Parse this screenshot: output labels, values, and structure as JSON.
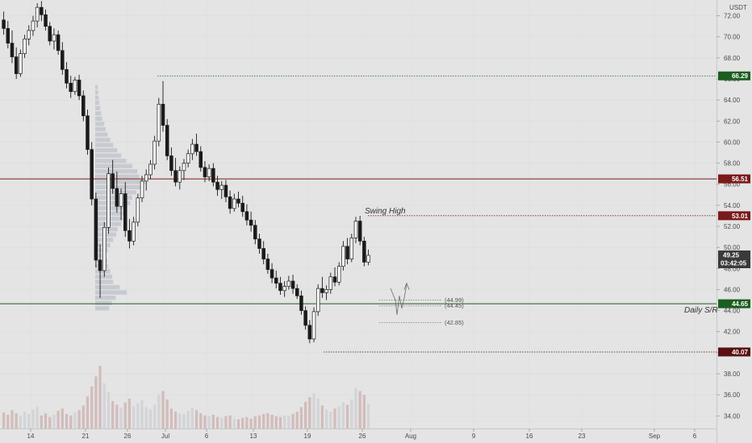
{
  "chart_data": {
    "type": "candlestick",
    "y_unit_label": "USDT",
    "ylim": [
      32.8,
      73.5
    ],
    "y_ticks": [
      "72.00",
      "70.00",
      "68.00",
      "66.00",
      "64.00",
      "62.00",
      "60.00",
      "58.00",
      "56.00",
      "54.00",
      "52.00",
      "50.00",
      "48.00",
      "46.00",
      "44.00",
      "42.00",
      "40.00",
      "38.00",
      "36.00",
      "34.00"
    ],
    "x_ticks": [
      "14",
      "21",
      "26",
      "Jul",
      "6",
      "13",
      "19",
      "26",
      "Aug",
      "9",
      "16",
      "23",
      "Sep",
      "6"
    ],
    "price_levels": [
      {
        "id": "level-66",
        "value": 66.29,
        "label": "66.29",
        "color": "#1b5e20",
        "style": "dotted"
      },
      {
        "id": "level-56",
        "value": 56.51,
        "label": "56.51",
        "color": "#7a1a1a",
        "style": "solid"
      },
      {
        "id": "level-53",
        "value": 53.01,
        "label": "53.01",
        "color": "#7a1a1a",
        "style": "dotted"
      },
      {
        "id": "level-44",
        "value": 44.65,
        "label": "44.65",
        "color": "#1b5e20",
        "style": "solid"
      },
      {
        "id": "level-40",
        "value": 40.07,
        "label": "40.07",
        "color": "#5a1010",
        "style": "dotted"
      }
    ],
    "current_price": {
      "value": 49.25,
      "label": "49.25",
      "countdown": "03:42:05",
      "color": "#3a3a3a"
    },
    "annotations": [
      {
        "id": "swing-high",
        "text": "Swing High"
      },
      {
        "id": "daily-sr",
        "text": "Daily S/R"
      }
    ],
    "projections": [
      {
        "id": "proj-1",
        "value": 44.99,
        "label": "(44.99)"
      },
      {
        "id": "proj-2",
        "value": 44.45,
        "label": "(44.45)"
      },
      {
        "id": "proj-3",
        "value": 42.85,
        "label": "(42.85)"
      }
    ],
    "candles": [
      [
        71.6,
        72.4,
        70.2,
        70.8
      ],
      [
        70.8,
        71.5,
        68.9,
        69.4
      ],
      [
        69.4,
        70.6,
        67.5,
        68.1
      ],
      [
        68.1,
        69.0,
        66.0,
        66.5
      ],
      [
        66.5,
        68.8,
        66.2,
        68.4
      ],
      [
        68.4,
        70.2,
        68.0,
        69.8
      ],
      [
        69.8,
        71.1,
        69.2,
        70.6
      ],
      [
        70.6,
        72.0,
        70.1,
        71.5
      ],
      [
        71.5,
        73.2,
        70.9,
        72.8
      ],
      [
        72.8,
        73.4,
        71.5,
        72.1
      ],
      [
        72.1,
        72.6,
        70.6,
        71.0
      ],
      [
        71.0,
        71.4,
        69.2,
        69.6
      ],
      [
        69.6,
        70.8,
        68.8,
        70.2
      ],
      [
        70.2,
        70.6,
        68.3,
        68.7
      ],
      [
        68.7,
        69.5,
        66.4,
        66.9
      ],
      [
        66.9,
        67.6,
        65.1,
        65.6
      ],
      [
        65.6,
        66.3,
        64.2,
        64.8
      ],
      [
        64.8,
        66.2,
        64.5,
        65.9
      ],
      [
        65.9,
        66.4,
        64.0,
        64.4
      ],
      [
        64.4,
        64.9,
        62.0,
        62.5
      ],
      [
        62.5,
        63.1,
        58.8,
        59.3
      ],
      [
        59.3,
        60.0,
        54.0,
        54.6
      ],
      [
        54.6,
        55.2,
        48.1,
        48.8
      ],
      [
        48.8,
        50.3,
        45.2,
        47.8
      ],
      [
        47.8,
        52.4,
        47.2,
        51.9
      ],
      [
        51.9,
        57.6,
        51.3,
        57.0
      ],
      [
        57.0,
        58.3,
        55.1,
        55.6
      ],
      [
        55.6,
        57.2,
        53.3,
        53.9
      ],
      [
        53.9,
        55.6,
        52.6,
        55.1
      ],
      [
        55.1,
        56.2,
        51.0,
        51.6
      ],
      [
        51.6,
        52.7,
        49.9,
        50.6
      ],
      [
        50.6,
        52.9,
        50.2,
        52.4
      ],
      [
        52.4,
        55.1,
        52.0,
        54.7
      ],
      [
        54.7,
        56.8,
        54.3,
        56.3
      ],
      [
        56.3,
        57.4,
        55.4,
        56.9
      ],
      [
        56.9,
        58.3,
        56.5,
        57.9
      ],
      [
        57.9,
        60.6,
        57.4,
        60.1
      ],
      [
        60.1,
        64.2,
        59.6,
        63.6
      ],
      [
        63.6,
        65.8,
        61.0,
        61.6
      ],
      [
        61.6,
        62.2,
        58.3,
        58.7
      ],
      [
        58.7,
        59.5,
        56.8,
        57.3
      ],
      [
        57.3,
        58.5,
        55.8,
        56.2
      ],
      [
        56.2,
        57.7,
        55.5,
        57.3
      ],
      [
        57.3,
        58.4,
        56.4,
        58.0
      ],
      [
        58.0,
        59.3,
        57.6,
        58.9
      ],
      [
        58.9,
        60.3,
        58.3,
        59.8
      ],
      [
        59.8,
        60.8,
        58.7,
        59.1
      ],
      [
        59.1,
        59.6,
        57.2,
        57.6
      ],
      [
        57.6,
        58.2,
        56.2,
        56.7
      ],
      [
        56.7,
        57.9,
        56.3,
        57.5
      ],
      [
        57.5,
        58.0,
        55.8,
        56.2
      ],
      [
        56.2,
        56.8,
        54.9,
        55.5
      ],
      [
        55.5,
        56.3,
        54.6,
        55.9
      ],
      [
        55.9,
        56.4,
        54.3,
        54.8
      ],
      [
        54.8,
        55.4,
        53.2,
        53.7
      ],
      [
        53.7,
        55.1,
        53.4,
        54.6
      ],
      [
        54.6,
        55.3,
        53.8,
        54.2
      ],
      [
        54.2,
        54.9,
        52.9,
        53.4
      ],
      [
        53.4,
        54.1,
        52.1,
        52.6
      ],
      [
        52.6,
        53.4,
        51.5,
        52.1
      ],
      [
        52.1,
        52.6,
        50.3,
        50.8
      ],
      [
        50.8,
        51.3,
        49.4,
        49.9
      ],
      [
        49.9,
        50.6,
        48.4,
        48.9
      ],
      [
        48.9,
        49.4,
        47.5,
        47.9
      ],
      [
        47.9,
        48.5,
        46.6,
        47.1
      ],
      [
        47.1,
        47.8,
        46.1,
        46.6
      ],
      [
        46.6,
        47.2,
        45.5,
        45.9
      ],
      [
        45.9,
        46.8,
        45.3,
        46.3
      ],
      [
        46.3,
        47.3,
        46.0,
        46.8
      ],
      [
        46.8,
        47.4,
        45.6,
        46.1
      ],
      [
        46.1,
        46.5,
        45.1,
        45.4
      ],
      [
        45.4,
        45.9,
        43.6,
        44.0
      ],
      [
        44.0,
        44.4,
        42.2,
        42.6
      ],
      [
        42.6,
        43.1,
        40.9,
        41.3
      ],
      [
        41.3,
        44.3,
        41.0,
        43.9
      ],
      [
        43.9,
        46.5,
        43.5,
        46.1
      ],
      [
        46.1,
        47.2,
        45.2,
        45.7
      ],
      [
        45.7,
        46.4,
        45.0,
        46.0
      ],
      [
        46.0,
        47.6,
        45.6,
        47.2
      ],
      [
        47.2,
        48.1,
        46.3,
        46.7
      ],
      [
        46.7,
        48.6,
        46.4,
        48.2
      ],
      [
        48.2,
        50.6,
        47.8,
        50.1
      ],
      [
        50.1,
        50.9,
        48.4,
        48.9
      ],
      [
        48.9,
        51.3,
        48.6,
        50.9
      ],
      [
        50.9,
        52.9,
        50.4,
        52.5
      ],
      [
        52.5,
        53.0,
        50.2,
        50.6
      ],
      [
        50.6,
        51.0,
        48.2,
        48.6
      ],
      [
        48.6,
        49.8,
        48.3,
        49.25
      ]
    ],
    "volumes": [
      2.1,
      1.8,
      2.4,
      2.0,
      1.6,
      2.2,
      1.9,
      2.5,
      2.8,
      1.7,
      2.0,
      1.5,
      1.8,
      2.3,
      2.6,
      1.9,
      1.7,
      2.1,
      2.4,
      3.0,
      4.2,
      5.5,
      6.8,
      8.2,
      5.9,
      4.8,
      3.6,
      3.1,
      2.7,
      3.4,
      3.9,
      2.9,
      3.3,
      3.7,
      2.8,
      2.5,
      3.1,
      4.4,
      4.9,
      3.8,
      2.6,
      2.2,
      2.0,
      1.9,
      2.3,
      2.7,
      2.4,
      2.0,
      1.7,
      1.6,
      1.8,
      1.5,
      1.4,
      1.6,
      1.7,
      1.3,
      1.2,
      1.4,
      1.5,
      1.3,
      1.6,
      1.7,
      1.9,
      2.0,
      1.8,
      1.6,
      1.5,
      1.7,
      1.6,
      1.9,
      2.2,
      2.8,
      3.5,
      4.1,
      4.6,
      3.9,
      3.0,
      2.5,
      2.2,
      2.6,
      2.9,
      3.4,
      3.1,
      3.8,
      5.3,
      4.9,
      4.4,
      3.2
    ],
    "volume_profile": [
      [
        44.2,
        0.28
      ],
      [
        44.7,
        0.33
      ],
      [
        45.2,
        0.41
      ],
      [
        45.7,
        0.63
      ],
      [
        46.2,
        0.49
      ],
      [
        46.7,
        0.36
      ],
      [
        47.2,
        0.34
      ],
      [
        47.7,
        0.3
      ],
      [
        48.2,
        0.26
      ],
      [
        48.7,
        0.24
      ],
      [
        49.2,
        0.22
      ],
      [
        49.7,
        0.25
      ],
      [
        50.2,
        0.3
      ],
      [
        50.7,
        0.36
      ],
      [
        51.2,
        0.42
      ],
      [
        51.7,
        0.45
      ],
      [
        52.2,
        0.52
      ],
      [
        52.7,
        0.55
      ],
      [
        53.2,
        0.6
      ],
      [
        53.7,
        0.64
      ],
      [
        54.2,
        0.7
      ],
      [
        54.7,
        0.74
      ],
      [
        55.2,
        0.82
      ],
      [
        55.7,
        0.93
      ],
      [
        56.2,
        1.0
      ],
      [
        56.7,
        0.88
      ],
      [
        57.2,
        0.84
      ],
      [
        57.7,
        0.74
      ],
      [
        58.2,
        0.62
      ],
      [
        58.7,
        0.52
      ],
      [
        59.2,
        0.44
      ],
      [
        59.7,
        0.36
      ],
      [
        60.2,
        0.3
      ],
      [
        60.7,
        0.25
      ],
      [
        61.2,
        0.21
      ],
      [
        61.7,
        0.18
      ],
      [
        62.2,
        0.14
      ],
      [
        62.7,
        0.12
      ],
      [
        63.2,
        0.1
      ],
      [
        63.7,
        0.08
      ],
      [
        64.2,
        0.07
      ],
      [
        64.7,
        0.06
      ],
      [
        65.2,
        0.05
      ]
    ]
  }
}
